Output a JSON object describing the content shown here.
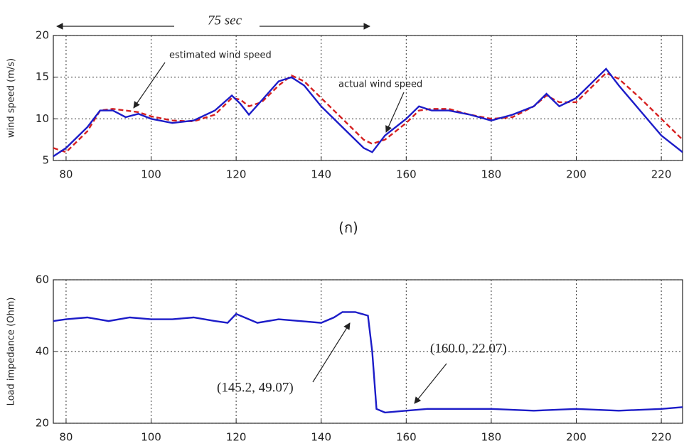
{
  "chart_data": [
    {
      "type": "line",
      "y_label": "wind speed (m/s)",
      "x": [
        77,
        80,
        85,
        88,
        91,
        94,
        97,
        100,
        105,
        110,
        115,
        119,
        121,
        123,
        126,
        130,
        133,
        136,
        140,
        145,
        150,
        152,
        155,
        160,
        163,
        166,
        170,
        175,
        180,
        185,
        190,
        193,
        196,
        200,
        205,
        207,
        210,
        215,
        220,
        225
      ],
      "series": [
        {
          "name": "estimated wind speed",
          "color": "#d62020",
          "linestyle": "dashed",
          "values": [
            6.5,
            6,
            8.5,
            11,
            11.2,
            11,
            10.8,
            10.3,
            9.8,
            9.7,
            10.5,
            12.5,
            12.3,
            11.5,
            12,
            14,
            15.2,
            14.5,
            12.5,
            10,
            7.5,
            7,
            7.5,
            9.5,
            11,
            11.2,
            11.2,
            10.5,
            10,
            10.2,
            11.5,
            12.8,
            12,
            12,
            14.5,
            15.5,
            14.8,
            12.5,
            10,
            7.5
          ]
        },
        {
          "name": "actual wind speed",
          "color": "#1c1cc8",
          "linestyle": "solid",
          "values": [
            5.5,
            6.5,
            9,
            11,
            11,
            10.2,
            10.6,
            10,
            9.5,
            9.8,
            11,
            12.8,
            11.8,
            10.5,
            12.2,
            14.5,
            15,
            14,
            11.5,
            9,
            6.5,
            6,
            8,
            10,
            11.5,
            11,
            11,
            10.5,
            9.8,
            10.5,
            11.5,
            13,
            11.5,
            12.5,
            15,
            16,
            14,
            11,
            8,
            6
          ]
        }
      ],
      "xlim": [
        77,
        225
      ],
      "xticks": [
        80,
        100,
        120,
        140,
        160,
        180,
        200,
        220
      ],
      "ylim": [
        5,
        20
      ],
      "yticks": [
        5,
        10,
        15,
        20
      ],
      "grid": true,
      "annotations": [
        "75 sec"
      ]
    },
    {
      "type": "line",
      "y_label": "Load impedance (Ohm)",
      "x": [
        77,
        80,
        85,
        90,
        95,
        100,
        105,
        110,
        115,
        118,
        120,
        125,
        130,
        135,
        140,
        143,
        145,
        148,
        151,
        152,
        153,
        155,
        160,
        165,
        170,
        180,
        190,
        200,
        210,
        220,
        225
      ],
      "series": [
        {
          "color": "#1c1cc8",
          "linestyle": "solid",
          "values": [
            48.5,
            49,
            49.5,
            48.5,
            49.5,
            49,
            49,
            49.5,
            48.5,
            48,
            50.5,
            48,
            49,
            48.5,
            48,
            49.5,
            51,
            51,
            50,
            40,
            24,
            23,
            23.5,
            24,
            24,
            24,
            23.5,
            24,
            23.5,
            24,
            24.5
          ]
        }
      ],
      "xlim": [
        77,
        225
      ],
      "xticks": [
        80,
        100,
        120,
        140,
        160,
        180,
        200,
        220
      ],
      "ylim": [
        20,
        60
      ],
      "yticks": [
        20,
        40,
        60
      ],
      "grid": true,
      "annotations": [
        "(145.2, 49.07)",
        "(160.0, 22.07)"
      ]
    }
  ],
  "caption": "(ก)"
}
